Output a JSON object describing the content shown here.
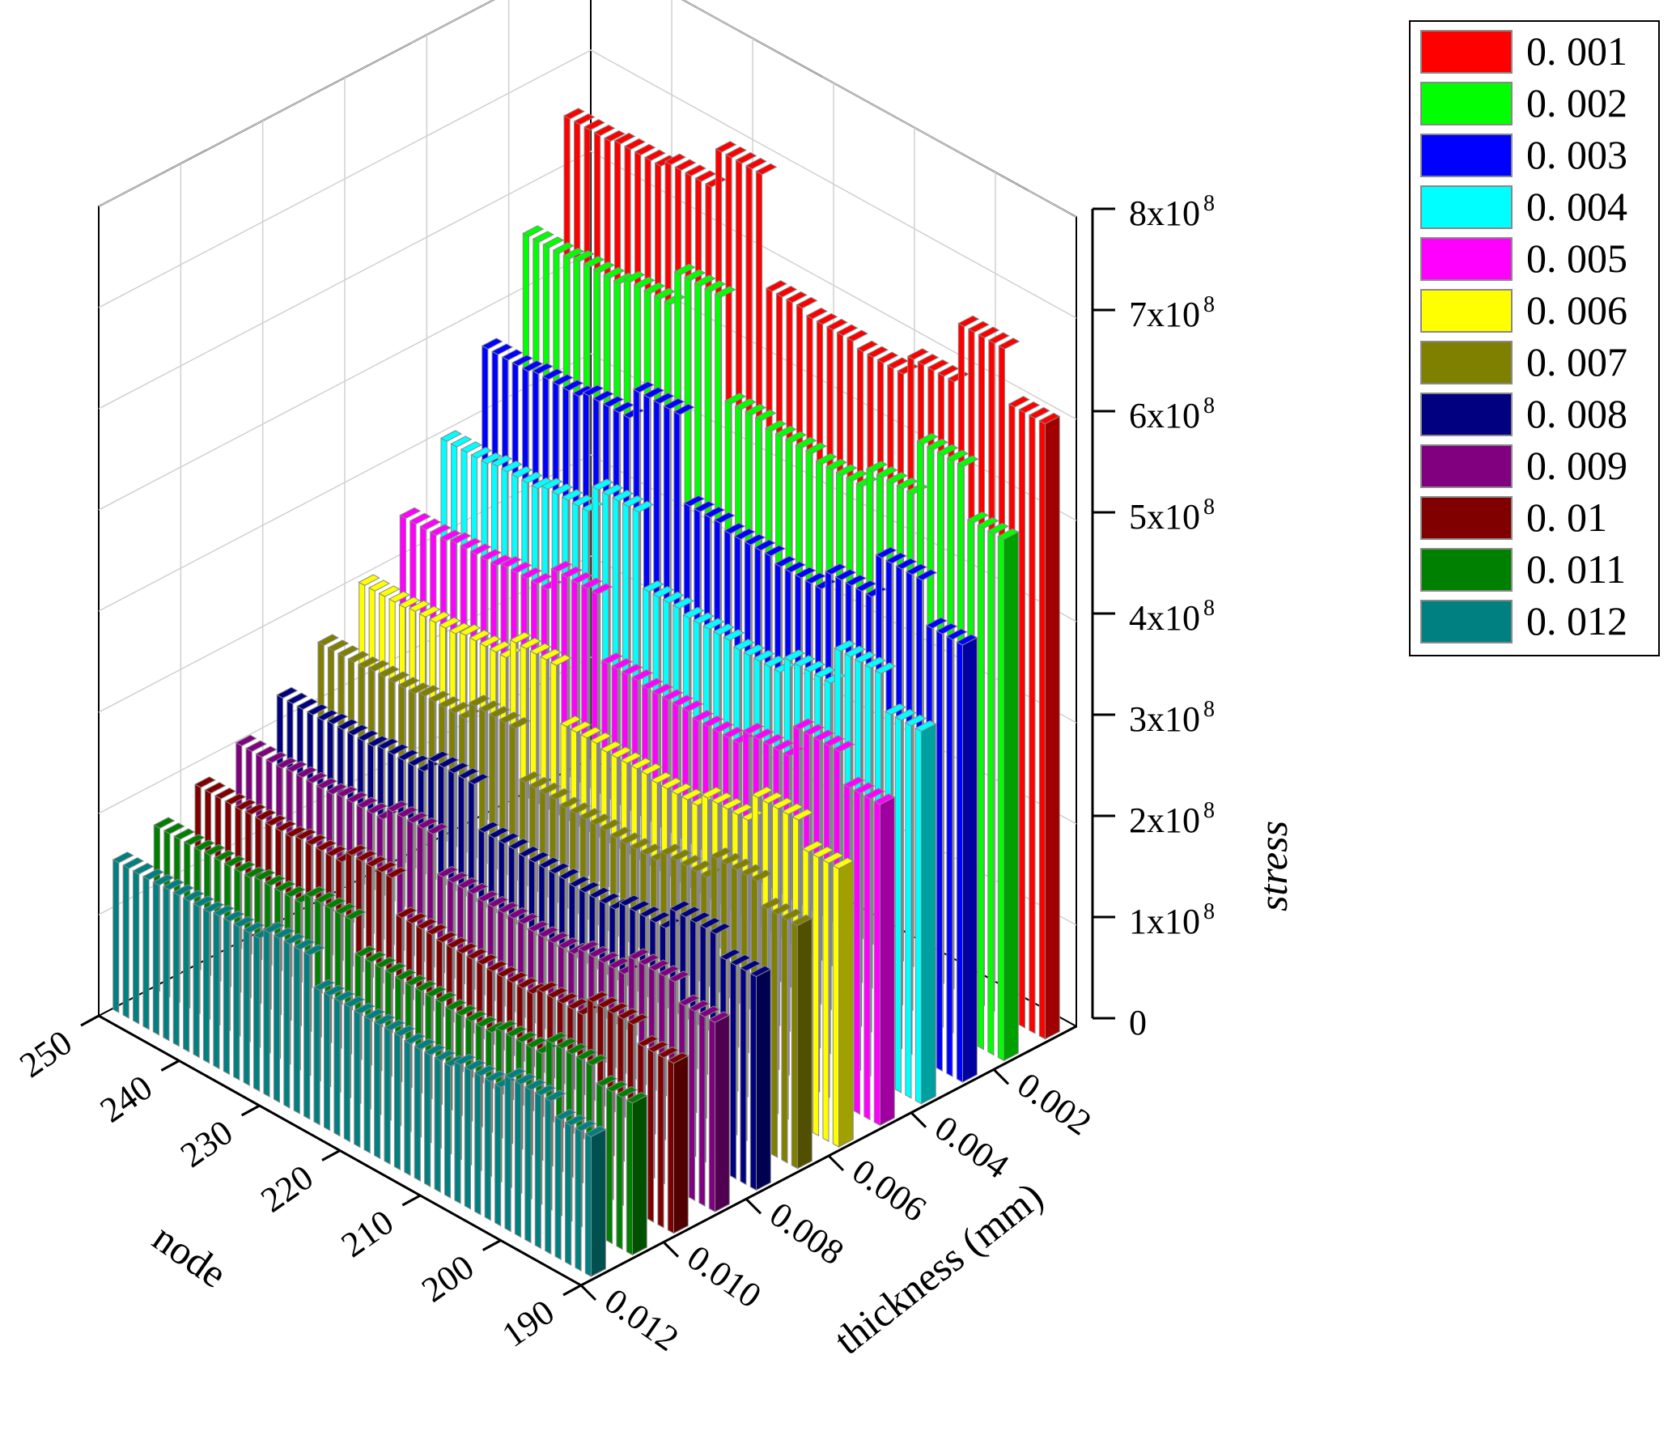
{
  "chart_data": {
    "type": "bar3d",
    "title": "",
    "xlabel": "node",
    "ylabel": "thickness (mm)",
    "zlabel": "stress",
    "node_ticks": [
      "250",
      "240",
      "230",
      "220",
      "210",
      "200",
      "190"
    ],
    "thickness_ticks": [
      "0.002",
      "0.004",
      "0.006",
      "0.008",
      "0.010",
      "0.012"
    ],
    "stress_ticks": [
      "0",
      "1x10",
      "2x10",
      "3x10",
      "4x10",
      "5x10",
      "6x10",
      "7x10",
      "8x10"
    ],
    "stress_tick_exponent": "8",
    "zlim": [
      0,
      800000000
    ],
    "node_range": [
      190,
      250
    ],
    "grid": true,
    "legend_position": "top-right",
    "series": [
      {
        "name": "0. 001",
        "color": "#FF0000",
        "side_color": "#A00000",
        "values": [
          650000000,
          653000000,
          660000000,
          700000000,
          590000000,
          585000000,
          580000000,
          600000000,
          660000000,
          608000000
        ]
      },
      {
        "name": "0. 002",
        "color": "#00FF00",
        "side_color": "#00A000",
        "values": [
          555000000,
          558000000,
          565000000,
          600000000,
          500000000,
          495000000,
          490000000,
          510000000,
          565000000,
          515000000
        ]
      },
      {
        "name": "0. 003",
        "color": "#0000FF",
        "side_color": "#0000A0",
        "values": [
          465000000,
          468000000,
          474000000,
          505000000,
          420000000,
          415000000,
          410000000,
          430000000,
          474000000,
          432000000
        ]
      },
      {
        "name": "0. 004",
        "color": "#00FFFF",
        "side_color": "#00A0A0",
        "values": [
          395000000,
          398000000,
          403000000,
          430000000,
          357000000,
          353000000,
          349000000,
          366000000,
          403000000,
          368000000
        ]
      },
      {
        "name": "0. 005",
        "color": "#FF00FF",
        "side_color": "#A000A0",
        "values": [
          340000000,
          343000000,
          347000000,
          370000000,
          307000000,
          304000000,
          300000000,
          315000000,
          347000000,
          317000000
        ]
      },
      {
        "name": "0. 006",
        "color": "#FFFF00",
        "side_color": "#A0A000",
        "values": [
          295000000,
          297000000,
          301000000,
          321000000,
          266000000,
          263000000,
          260000000,
          273000000,
          301000000,
          275000000
        ]
      },
      {
        "name": "0. 007",
        "color": "#808000",
        "side_color": "#505000",
        "values": [
          257000000,
          259000000,
          262000000,
          280000000,
          232000000,
          229000000,
          227000000,
          238000000,
          262000000,
          240000000
        ]
      },
      {
        "name": "0. 008",
        "color": "#000080",
        "side_color": "#000050",
        "values": [
          226000000,
          228000000,
          231000000,
          246000000,
          204000000,
          202000000,
          200000000,
          209000000,
          231000000,
          211000000
        ]
      },
      {
        "name": "0. 009",
        "color": "#800080",
        "side_color": "#500050",
        "values": [
          200000000,
          202000000,
          205000000,
          218000000,
          181000000,
          179000000,
          177000000,
          185000000,
          205000000,
          187000000
        ]
      },
      {
        "name": "0. 01",
        "color": "#800000",
        "side_color": "#500000",
        "values": [
          180000000,
          181000000,
          184000000,
          196000000,
          162000000,
          160000000,
          159000000,
          166000000,
          184000000,
          168000000
        ]
      },
      {
        "name": "0. 011",
        "color": "#008000",
        "side_color": "#005000",
        "values": [
          161000000,
          162000000,
          165000000,
          176000000,
          145000000,
          144000000,
          142000000,
          149000000,
          165000000,
          150000000
        ]
      },
      {
        "name": "0. 012",
        "color": "#008080",
        "side_color": "#005050",
        "values": [
          148000000,
          149000000,
          151000000,
          162000000,
          133000000,
          132000000,
          130000000,
          137000000,
          151000000,
          138000000
        ]
      }
    ],
    "node_values": [
      250,
      244,
      238,
      235,
      232,
      226,
      220,
      213,
      200,
      192
    ]
  }
}
